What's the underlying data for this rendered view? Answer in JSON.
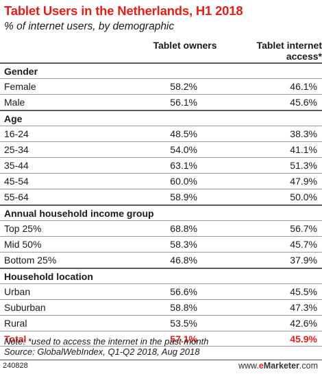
{
  "chart_data": {
    "type": "table",
    "title": "Tablet Users in the Netherlands, H1 2018",
    "subtitle": "% of internet users, by demographic",
    "columns": [
      "Tablet owners",
      "Tablet internet access*"
    ],
    "groups": [
      {
        "name": "Gender",
        "rows": [
          {
            "label": "Female",
            "values": [
              "58.2%",
              "46.1%"
            ]
          },
          {
            "label": "Male",
            "values": [
              "56.1%",
              "45.6%"
            ]
          }
        ]
      },
      {
        "name": "Age",
        "rows": [
          {
            "label": "16-24",
            "values": [
              "48.5%",
              "38.3%"
            ]
          },
          {
            "label": "25-34",
            "values": [
              "54.0%",
              "41.1%"
            ]
          },
          {
            "label": "35-44",
            "values": [
              "63.1%",
              "51.3%"
            ]
          },
          {
            "label": "45-54",
            "values": [
              "60.0%",
              "47.9%"
            ]
          },
          {
            "label": "55-64",
            "values": [
              "58.9%",
              "50.0%"
            ]
          }
        ]
      },
      {
        "name": "Annual household income group",
        "rows": [
          {
            "label": "Top 25%",
            "values": [
              "68.8%",
              "56.7%"
            ]
          },
          {
            "label": "Mid 50%",
            "values": [
              "58.3%",
              "45.7%"
            ]
          },
          {
            "label": "Bottom 25%",
            "values": [
              "46.8%",
              "37.9%"
            ]
          }
        ]
      },
      {
        "name": "Household location",
        "rows": [
          {
            "label": "Urban",
            "values": [
              "56.6%",
              "45.5%"
            ]
          },
          {
            "label": "Suburban",
            "values": [
              "58.8%",
              "47.3%"
            ]
          },
          {
            "label": "Rural",
            "values": [
              "53.5%",
              "42.6%"
            ]
          }
        ]
      }
    ],
    "total": {
      "label": "Total",
      "values": [
        "57.1%",
        "45.9%"
      ]
    }
  },
  "note": "Note: *used to access the internet in the past month",
  "source": "Source: GlobalWebIndex, Q1-Q2 2018, Aug 2018",
  "chart_id": "240828",
  "brand": {
    "prefix": "www.",
    "e": "e",
    "name": "Marketer",
    "suffix": ".com"
  },
  "colors": {
    "accent": "#e0211b",
    "text": "#1a1a1a",
    "rule": "#9a9a9a"
  }
}
